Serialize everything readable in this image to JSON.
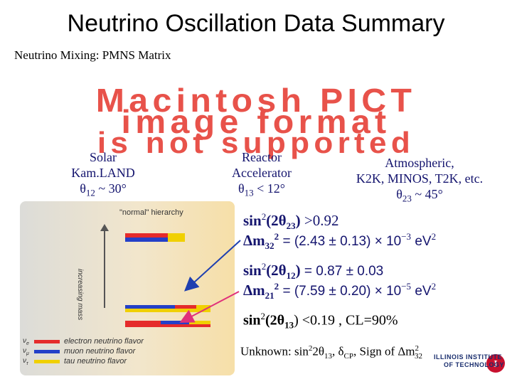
{
  "title": "Neutrino Oscillation Data Summary",
  "subtitle": "Neutrino Mixing: PMNS Matrix",
  "placeholder_image": {
    "lines": [
      "Macintosh PICT",
      "image format",
      "is not supported"
    ],
    "color": "#e8524a"
  },
  "columns": {
    "solar": {
      "line1": "Solar",
      "line2": "Kam.LAND",
      "line3_symbol": "θ",
      "line3_sub": "12",
      "line3_rest": " ~ 30°"
    },
    "reactor": {
      "line1": "Reactor",
      "line2": "Accelerator",
      "line3_symbol": "θ",
      "line3_sub": "13",
      "line3_rest": " < 12°"
    },
    "atmospheric": {
      "line1": "Atmospheric,",
      "line2": "K2K, MINOS, T2K, etc.",
      "line3_symbol": "θ",
      "line3_sub": "23",
      "line3_rest": " ~ 45°"
    }
  },
  "equations": {
    "eq1_bold": "sin",
    "eq1_sup": "2",
    "eq1_bold2": "(2θ",
    "eq1_sub": "23",
    "eq1_bold3": ")",
    "eq1_rest": "  >0.92",
    "eq2_bold": "Δm",
    "eq2_sub": "32",
    "eq2_sup": "2",
    "eq2_rest": "  = (2.43 ± 0.13)  ×  10",
    "eq2_exp": "−3",
    "eq2_unit": " eV",
    "eq2_unit_sup": "2",
    "eq3_bold": "sin",
    "eq3_sup": "2",
    "eq3_bold2": "(2θ",
    "eq3_sub": "12",
    "eq3_bold3": ")",
    "eq3_rest": "  = 0.87 ± 0.03",
    "eq4_bold": "Δm",
    "eq4_sub": "21",
    "eq4_sup": "2",
    "eq4_rest": "  = (7.59 ± 0.20)  ×  10",
    "eq4_exp": "−5",
    "eq4_unit": " eV",
    "eq4_unit_sup": "2",
    "eq5_a": "sin",
    "eq5_sup": "2",
    "eq5_b": "(2θ",
    "eq5_sub": "13",
    "eq5_c": ")  <0.19  ,      CL=90%"
  },
  "unknown": {
    "prefix": "Unknown: sin",
    "sup1": "2",
    "mid1": "2θ",
    "sub1": "13",
    "mid2": ",  δ",
    "sub2": "CP",
    "mid3": ",  Sign of Δm",
    "sup3": "2",
    "sub3": "32"
  },
  "diagram": {
    "heading": "\"normal\" hierarchy",
    "axis_label": "increasing mass",
    "legend": [
      {
        "symbol": "ν",
        "sub": "e",
        "text": "electron neutrino flavor",
        "color": "#e52b2b"
      },
      {
        "symbol": "ν",
        "sub": "μ",
        "text": "muon neutrino flavor",
        "color": "#2440c8"
      },
      {
        "symbol": "ν",
        "sub": "τ",
        "text": "tau neutrino flavor",
        "color": "#f0d000"
      }
    ]
  },
  "logo": {
    "line1": "ILLINOIS INSTITUTE",
    "line2": "OF TECHNOLOGY"
  },
  "colors": {
    "arrow_blue": "#1e3fb0",
    "arrow_magenta": "#e0307a",
    "text_navy": "#14146e"
  }
}
